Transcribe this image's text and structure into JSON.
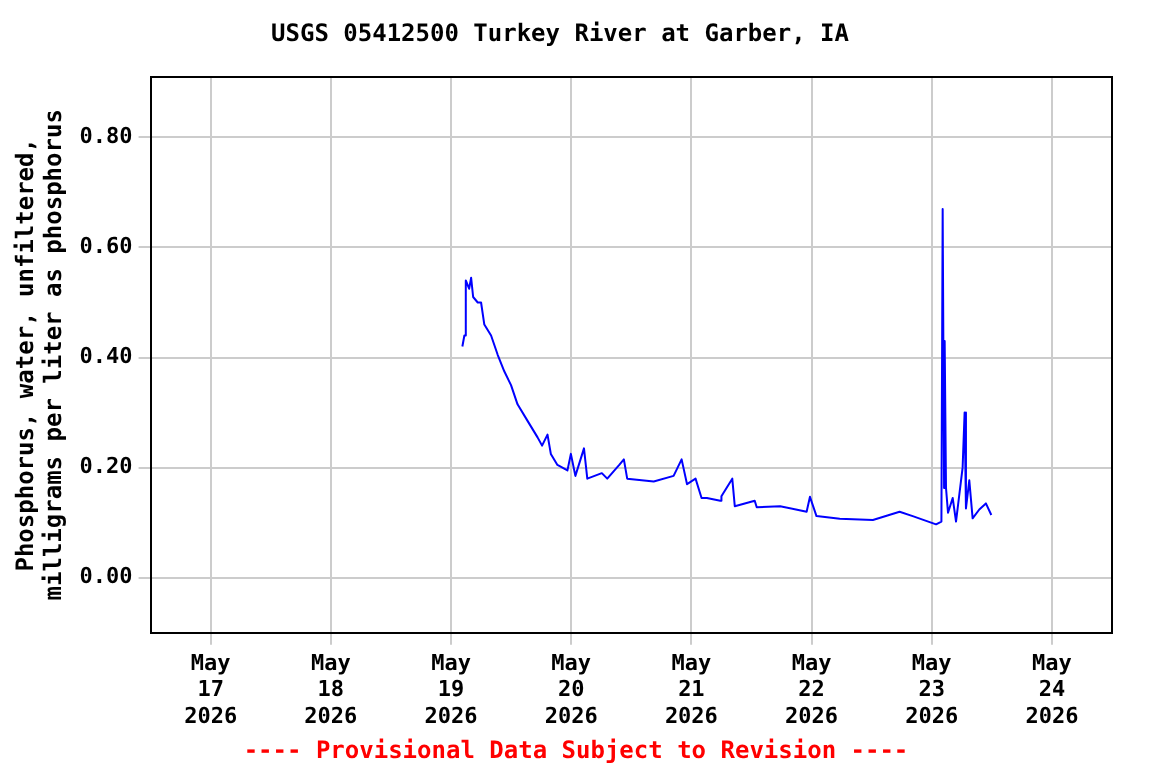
{
  "chart_data": {
    "type": "line",
    "title": "USGS 05412500 Turkey River at Garber, IA",
    "ylabel": "Phosphorus, water, unfiltered,\nmilligrams per liter as phosphorus",
    "annotations": [
      "---- Provisional Data Subject to Revision ----"
    ],
    "xlim": [
      "2026-05-16T12:00",
      "2026-05-24T12:00"
    ],
    "xticks": [
      {
        "value": "2026-05-17",
        "label": "May 17 2026"
      },
      {
        "value": "2026-05-18",
        "label": "May 18 2026"
      },
      {
        "value": "2026-05-19",
        "label": "May 19 2026"
      },
      {
        "value": "2026-05-20",
        "label": "May 20 2026"
      },
      {
        "value": "2026-05-21",
        "label": "May 21 2026"
      },
      {
        "value": "2026-05-22",
        "label": "May 22 2026"
      },
      {
        "value": "2026-05-23",
        "label": "May 23 2026"
      },
      {
        "value": "2026-05-24",
        "label": "May 24 2026"
      }
    ],
    "ylim": [
      -0.1,
      0.91
    ],
    "yticks": [
      {
        "value": 0,
        "label": "0.00"
      },
      {
        "value": 0.2,
        "label": "0.20"
      },
      {
        "value": 0.4,
        "label": "0.40"
      },
      {
        "value": 0.6,
        "label": "0.60"
      },
      {
        "value": 0.8,
        "label": "0.80"
      }
    ],
    "grid": true,
    "legend": false,
    "marker": "none",
    "line_style": "solid",
    "x": [
      "2026-05-19T02:16",
      "2026-05-19T02:40",
      "2026-05-19T02:57",
      "2026-05-19T03:37",
      "2026-05-19T04:01",
      "2026-05-19T04:25",
      "2026-05-19T05:20",
      "2026-05-19T06:00",
      "2026-05-19T06:39",
      "2026-05-19T08:00",
      "2026-05-19T09:19",
      "2026-05-19T10:38",
      "2026-05-19T11:59",
      "2026-05-19T13:17",
      "2026-05-19T15:17",
      "2026-05-19T17:17",
      "2026-05-19T18:11",
      "2026-05-19T19:16",
      "2026-05-19T19:56",
      "2026-05-19T21:15",
      "2026-05-19T23:15",
      "2026-05-19T23:56",
      "2026-05-20T00:50",
      "2026-05-20T02:33",
      "2026-05-20T03:13",
      "2026-05-20T06:07",
      "2026-05-20T07:12",
      "2026-05-20T09:36",
      "2026-05-20T10:31",
      "2026-05-20T11:11",
      "2026-05-20T16:29",
      "2026-05-20T20:27",
      "2026-05-20T22:03",
      "2026-05-20T23:08",
      "2026-05-21T00:50",
      "2026-05-21T02:02",
      "2026-05-21T03:06",
      "2026-05-21T05:46",
      "2026-05-21T06:00",
      "2026-05-21T08:10",
      "2026-05-21T08:40",
      "2026-05-21T12:39",
      "2026-05-21T13:03",
      "2026-05-21T17:43",
      "2026-05-21T23:01",
      "2026-05-21T23:41",
      "2026-05-22T00:59",
      "2026-05-22T05:38",
      "2026-05-22T12:15",
      "2026-05-22T17:35",
      "2026-05-22T20:12",
      "2026-05-23T00:52",
      "2026-05-23T01:56",
      "2026-05-23T02:11",
      "2026-05-23T02:28",
      "2026-05-23T02:35",
      "2026-05-23T02:51",
      "2026-05-23T03:15",
      "2026-05-23T04:11",
      "2026-05-23T04:51",
      "2026-05-23T06:10",
      "2026-05-23T06:34",
      "2026-05-23T06:50",
      "2026-05-23T07:30",
      "2026-05-23T08:10",
      "2026-05-23T09:30",
      "2026-05-23T10:49",
      "2026-05-23T11:54"
    ],
    "series": [
      {
        "color": "#0000ff",
        "values": [
          0.42,
          0.44,
          0.54,
          0.525,
          0.545,
          0.51,
          0.5,
          0.5,
          0.46,
          0.44,
          0.405,
          0.375,
          0.35,
          0.315,
          0.285,
          0.255,
          0.24,
          0.26,
          0.225,
          0.205,
          0.195,
          0.225,
          0.185,
          0.235,
          0.18,
          0.19,
          0.18,
          0.205,
          0.215,
          0.18,
          0.175,
          0.185,
          0.215,
          0.17,
          0.18,
          0.145,
          0.145,
          0.14,
          0.148,
          0.18,
          0.13,
          0.14,
          0.128,
          0.13,
          0.12,
          0.147,
          0.112,
          0.107,
          0.105,
          0.12,
          0.112,
          0.097,
          0.102,
          0.67,
          0.163,
          0.43,
          0.163,
          0.118,
          0.145,
          0.102,
          0.2,
          0.3,
          0.126,
          0.177,
          0.108,
          0.124,
          0.135,
          0.114
        ]
      }
    ]
  }
}
